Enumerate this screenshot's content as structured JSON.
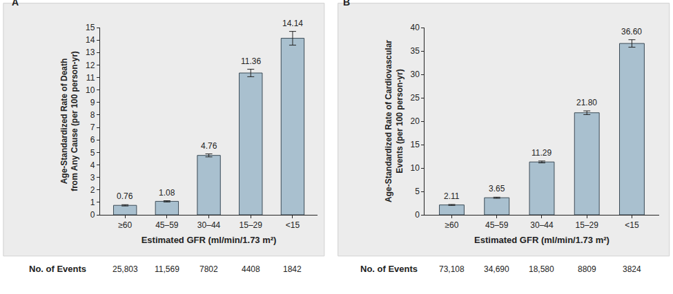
{
  "chart_data": [
    {
      "type": "bar",
      "title": "A",
      "categories": [
        "≥60",
        "45–59",
        "30–44",
        "15–29",
        "<15"
      ],
      "values": [
        0.76,
        1.08,
        4.76,
        11.36,
        14.14
      ],
      "value_labels": [
        "0.76",
        "1.08",
        "4.76",
        "11.36",
        "14.14"
      ],
      "error": [
        0.05,
        0.05,
        0.12,
        0.3,
        0.55
      ],
      "color": "#a9c0cf",
      "xlabel": "Estimated GFR (ml/min/1.73 m²)",
      "ylabel": "Age-Standardized Rate of Death\nfrom Any Cause (per 100 person-yr)",
      "ylim": [
        0,
        15
      ],
      "yticks": [
        0,
        1,
        2,
        3,
        4,
        5,
        6,
        7,
        8,
        9,
        10,
        11,
        12,
        13,
        14,
        15
      ],
      "data_labels": true,
      "grid": false,
      "events": {
        "label": "No. of Events",
        "values": [
          25803,
          11569,
          7802,
          4408,
          1842
        ],
        "value_labels": [
          "25,803",
          "11,569",
          "7802",
          "4408",
          "1842"
        ]
      }
    },
    {
      "type": "bar",
      "title": "B",
      "categories": [
        "≥60",
        "45–59",
        "30–44",
        "15–29",
        "<15"
      ],
      "values": [
        2.11,
        3.65,
        11.29,
        21.8,
        36.6
      ],
      "value_labels": [
        "2.11",
        "3.65",
        "11.29",
        "21.80",
        "36.60"
      ],
      "error": [
        0.1,
        0.12,
        0.2,
        0.4,
        0.8
      ],
      "color": "#a9c0cf",
      "xlabel": "Estimated GFR (ml/min/1.73 m²)",
      "ylabel": "Age-Standardized Rate of Cardiovascular\nEvents (per 100 person-yr)",
      "ylim": [
        0,
        40
      ],
      "yticks": [
        0,
        5,
        10,
        15,
        20,
        25,
        30,
        35,
        40
      ],
      "data_labels": true,
      "grid": false,
      "events": {
        "label": "No. of Events",
        "values": [
          73108,
          34690,
          18580,
          8809,
          3824
        ],
        "value_labels": [
          "73,108",
          "34,690",
          "18,580",
          "8809",
          "3824"
        ]
      }
    }
  ]
}
